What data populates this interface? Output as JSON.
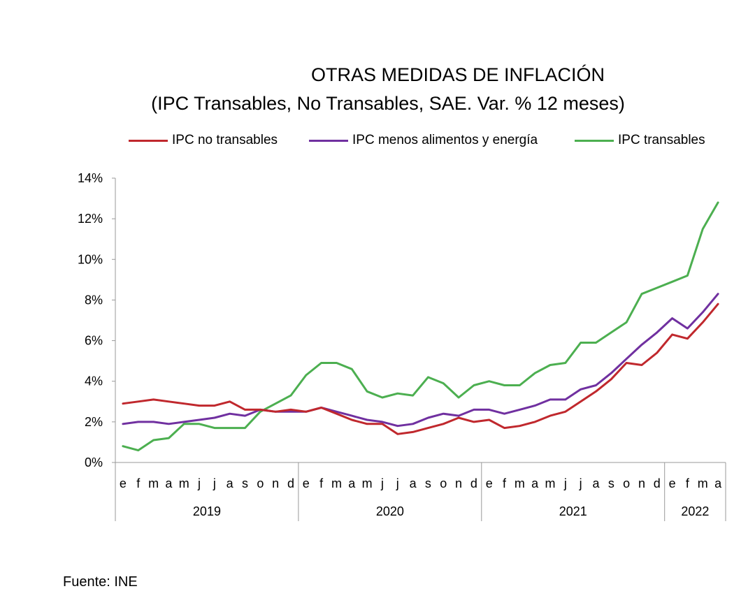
{
  "chart_data": {
    "type": "line",
    "title": "OTRAS MEDIDAS DE INFLACIÓN",
    "subtitle": "(IPC Transables, No Transables, SAE.  Var. % 12 meses)",
    "xlabel": "",
    "ylabel": "",
    "ylim": [
      0,
      14
    ],
    "yticks": [
      "0%",
      "2%",
      "4%",
      "6%",
      "8%",
      "10%",
      "12%",
      "14%"
    ],
    "ytick_values": [
      0,
      2,
      4,
      6,
      8,
      10,
      12,
      14
    ],
    "categories": [
      "e",
      "f",
      "m",
      "a",
      "m",
      "j",
      "j",
      "a",
      "s",
      "o",
      "n",
      "d",
      "e",
      "f",
      "m",
      "a",
      "m",
      "j",
      "j",
      "a",
      "s",
      "o",
      "n",
      "d",
      "e",
      "f",
      "m",
      "a",
      "m",
      "j",
      "j",
      "a",
      "s",
      "o",
      "n",
      "d",
      "e",
      "f",
      "m",
      "a"
    ],
    "years": [
      {
        "label": "2019",
        "months": 12
      },
      {
        "label": "2020",
        "months": 12
      },
      {
        "label": "2021",
        "months": 12
      },
      {
        "label": "2022",
        "months": 4
      }
    ],
    "series": [
      {
        "name": "IPC no transables",
        "color": "#C0282D",
        "values": [
          2.9,
          3.0,
          3.1,
          3.0,
          2.9,
          2.8,
          2.8,
          3.0,
          2.6,
          2.6,
          2.5,
          2.6,
          2.5,
          2.7,
          2.4,
          2.1,
          1.9,
          1.9,
          1.4,
          1.5,
          1.7,
          1.9,
          2.2,
          2.0,
          2.1,
          1.7,
          1.8,
          2.0,
          2.3,
          2.5,
          3.0,
          3.5,
          4.1,
          4.9,
          4.8,
          5.4,
          6.3,
          6.1,
          6.9,
          7.8
        ]
      },
      {
        "name": "IPC menos alimentos y energía",
        "color": "#7030A0",
        "values": [
          1.9,
          2.0,
          2.0,
          1.9,
          2.0,
          2.1,
          2.2,
          2.4,
          2.3,
          2.6,
          2.5,
          2.5,
          2.5,
          2.7,
          2.5,
          2.3,
          2.1,
          2.0,
          1.8,
          1.9,
          2.2,
          2.4,
          2.3,
          2.6,
          2.6,
          2.4,
          2.6,
          2.8,
          3.1,
          3.1,
          3.6,
          3.8,
          4.4,
          5.1,
          5.8,
          6.4,
          7.1,
          6.6,
          7.4,
          8.3
        ]
      },
      {
        "name": "IPC transables",
        "color": "#4CAF50",
        "values": [
          0.8,
          0.6,
          1.1,
          1.2,
          1.9,
          1.9,
          1.7,
          1.7,
          1.7,
          2.5,
          2.9,
          3.3,
          4.3,
          4.9,
          4.9,
          4.6,
          3.5,
          3.2,
          3.4,
          3.3,
          4.2,
          3.9,
          3.2,
          3.8,
          4.0,
          3.8,
          3.8,
          4.4,
          4.8,
          4.9,
          5.9,
          5.9,
          6.4,
          6.9,
          8.3,
          8.6,
          8.9,
          9.2,
          11.5,
          12.8
        ]
      }
    ],
    "legend_position": "top",
    "grid": false
  },
  "footer": "Fuente: INE"
}
